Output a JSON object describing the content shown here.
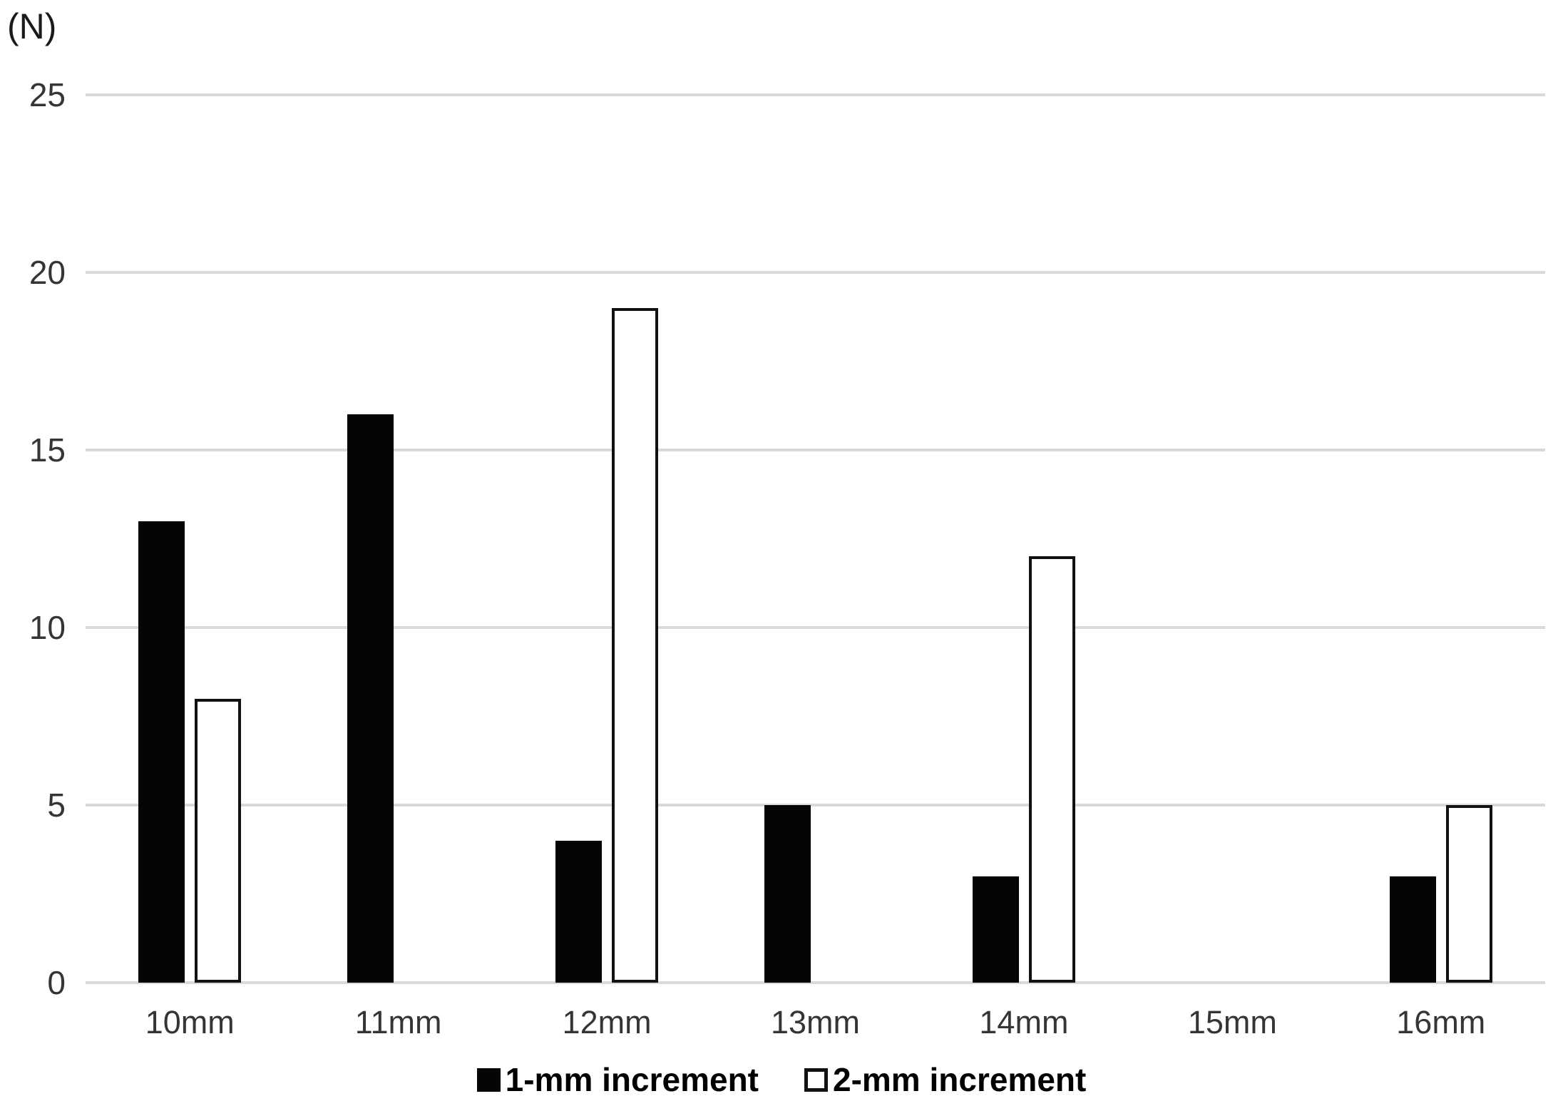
{
  "chart_data": {
    "type": "bar",
    "title": "",
    "xlabel": "",
    "ylabel": "(N)",
    "categories": [
      "10mm",
      "11mm",
      "12mm",
      "13mm",
      "14mm",
      "15mm",
      "16mm"
    ],
    "series": [
      {
        "name": "1-mm increment",
        "style": "filled",
        "color": "#050505",
        "values": [
          13,
          16,
          4,
          5,
          3,
          0,
          3
        ]
      },
      {
        "name": "2-mm increment",
        "style": "open",
        "color": "#ffffff",
        "border_color": "#111111",
        "values": [
          8,
          0,
          19,
          0,
          12,
          0,
          5
        ]
      }
    ],
    "y_ticks": [
      0,
      5,
      10,
      15,
      20,
      25
    ],
    "ylim": [
      0,
      25
    ],
    "grid": "horizontal-only",
    "gridline_color": "#d9d9d9",
    "legend_position": "bottom-center"
  },
  "legend": {
    "items": [
      {
        "label": "1-mm increment",
        "marker": "filled-square"
      },
      {
        "label": "2-mm increment",
        "marker": "open-square"
      }
    ]
  }
}
